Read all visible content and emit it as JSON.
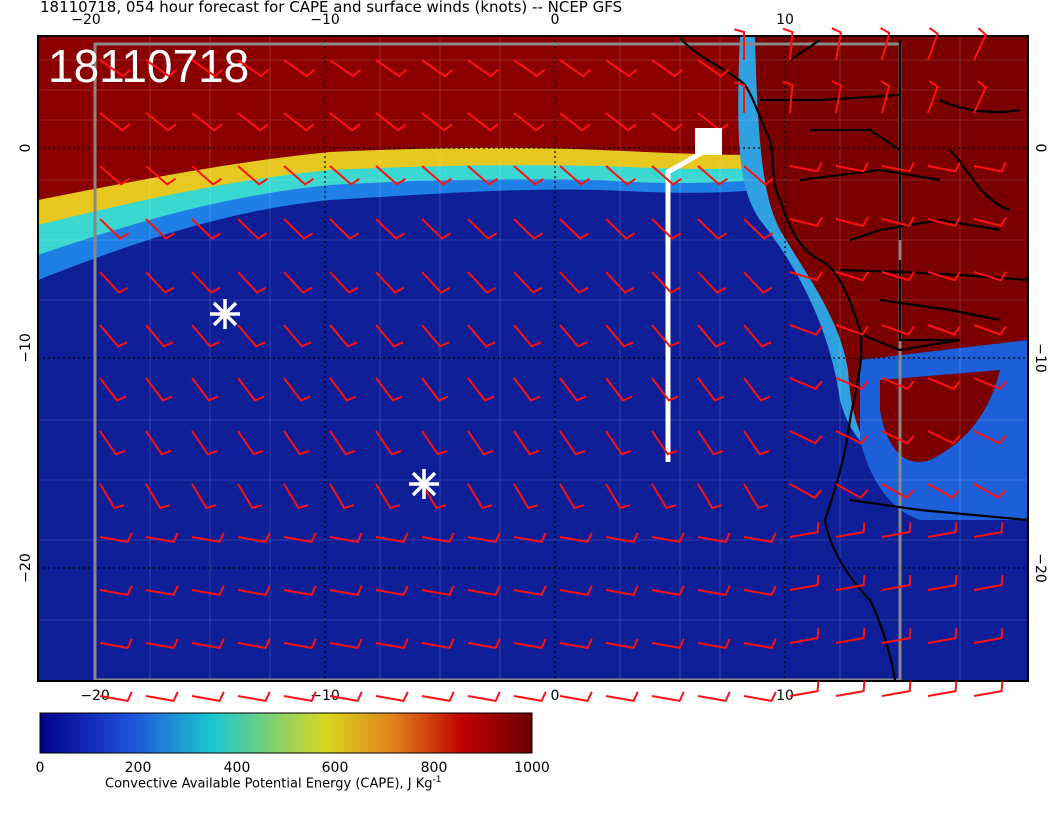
{
  "title": "18110718, 054 hour forecast for CAPE and surface winds (knots) -- NCEP GFS",
  "date_label": "18110718",
  "axes": {
    "lon_ticks": [
      "−20",
      "−10",
      "0",
      "10"
    ],
    "lat_ticks": [
      "0",
      "−10",
      "−20"
    ]
  },
  "colorbar": {
    "ticks": [
      "0",
      "200",
      "400",
      "600",
      "800",
      "1000"
    ],
    "label": "Convective Available Potential Energy (CAPE), J Kg",
    "label_sup": "-1",
    "colors": [
      "#00008b",
      "#1e4fd8",
      "#19c8d2",
      "#d8d81e",
      "#e0801c",
      "#c00000",
      "#6b0000"
    ]
  },
  "colors": {
    "ocean": "#0d1e96",
    "high_cape": "#7a0000",
    "wind_barbs": "#ff1010",
    "markers": "#ffffff",
    "coastline": "#000000"
  },
  "markers": [
    "asterisk",
    "asterisk"
  ],
  "icons": [
    "asterisk-marker-icon",
    "flag-marker-icon"
  ]
}
